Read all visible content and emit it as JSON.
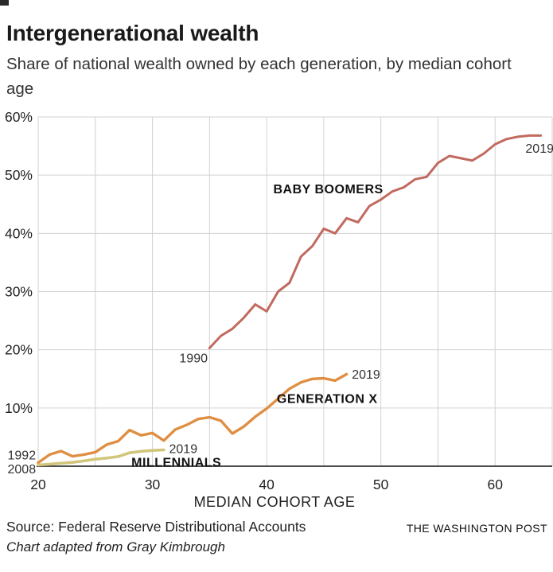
{
  "header": {
    "title": "Intergenerational wealth",
    "subtitle": "Share of national wealth owned by each generation, by median cohort age"
  },
  "footer": {
    "source": "Source: Federal Reserve Distributional Accounts",
    "credit": "Chart adapted from Gray Kimbrough",
    "publisher": "THE WASHINGTON POST"
  },
  "chart_data": {
    "type": "line",
    "title": "Intergenerational wealth",
    "subtitle": "Share of national wealth owned by each generation, by median cohort age",
    "xlabel": "MEDIAN COHORT AGE",
    "ylabel": "",
    "xlim": [
      20,
      65
    ],
    "ylim": [
      0,
      60
    ],
    "x_ticks": [
      20,
      30,
      40,
      50,
      60
    ],
    "y_ticks": [
      10,
      20,
      30,
      40,
      50,
      60
    ],
    "y_tick_suffix": "%",
    "grid": true,
    "grid_x_step": 5,
    "colors": {
      "grid": "#d2d2d2",
      "axis": "#4f4f4f",
      "tick_text": "#222222",
      "annotation_year_text": "#333333",
      "annotation_label_text": "#121212"
    },
    "series": [
      {
        "name": "Baby Boomers",
        "color": "#c16a5f",
        "stroke_width": 3,
        "points": [
          [
            35,
            20.3
          ],
          [
            36,
            22.4
          ],
          [
            37,
            23.6
          ],
          [
            38,
            25.5
          ],
          [
            39,
            27.8
          ],
          [
            40,
            26.6
          ],
          [
            41,
            30.0
          ],
          [
            42,
            31.5
          ],
          [
            43,
            36.0
          ],
          [
            44,
            37.8
          ],
          [
            45,
            40.8
          ],
          [
            46,
            40.0
          ],
          [
            47,
            42.6
          ],
          [
            48,
            41.9
          ],
          [
            49,
            44.7
          ],
          [
            50,
            45.8
          ],
          [
            51,
            47.2
          ],
          [
            52,
            47.9
          ],
          [
            53,
            49.3
          ],
          [
            54,
            49.7
          ],
          [
            55,
            52.1
          ],
          [
            56,
            53.3
          ],
          [
            57,
            52.9
          ],
          [
            58,
            52.5
          ],
          [
            59,
            53.7
          ],
          [
            60,
            55.3
          ],
          [
            61,
            56.2
          ],
          [
            62,
            56.6
          ],
          [
            63,
            56.8
          ],
          [
            64,
            56.8
          ]
        ]
      },
      {
        "name": "Generation X",
        "color": "#df8f44",
        "stroke_width": 3.4,
        "points": [
          [
            20,
            0.6
          ],
          [
            21,
            2.0
          ],
          [
            22,
            2.6
          ],
          [
            23,
            1.7
          ],
          [
            24,
            2.0
          ],
          [
            25,
            2.4
          ],
          [
            26,
            3.7
          ],
          [
            27,
            4.3
          ],
          [
            28,
            6.2
          ],
          [
            29,
            5.3
          ],
          [
            30,
            5.7
          ],
          [
            31,
            4.4
          ],
          [
            32,
            6.3
          ],
          [
            33,
            7.1
          ],
          [
            34,
            8.1
          ],
          [
            35,
            8.4
          ],
          [
            36,
            7.8
          ],
          [
            37,
            5.6
          ],
          [
            38,
            6.8
          ],
          [
            39,
            8.5
          ],
          [
            40,
            9.9
          ],
          [
            41,
            11.6
          ],
          [
            42,
            13.3
          ],
          [
            43,
            14.4
          ],
          [
            44,
            15.0
          ],
          [
            45,
            15.1
          ],
          [
            46,
            14.7
          ],
          [
            47,
            15.8
          ]
        ]
      },
      {
        "name": "Millennials",
        "color": "#d2c57c",
        "stroke_width": 3.6,
        "points": [
          [
            20,
            0.2
          ],
          [
            21,
            0.35
          ],
          [
            22,
            0.5
          ],
          [
            23,
            0.65
          ],
          [
            24,
            0.9
          ],
          [
            25,
            1.2
          ],
          [
            26,
            1.4
          ],
          [
            27,
            1.65
          ],
          [
            28,
            2.3
          ],
          [
            29,
            2.55
          ],
          [
            30,
            2.7
          ],
          [
            31,
            2.8
          ]
        ]
      }
    ],
    "annotations": [
      {
        "text": "1990",
        "age": 33.6,
        "pct": 18.6,
        "anchor": "middle",
        "bold": false
      },
      {
        "text": "2019",
        "age": 63.9,
        "pct": 54.6,
        "anchor": "middle",
        "bold": false
      },
      {
        "text": "2019",
        "age": 48.7,
        "pct": 15.8,
        "anchor": "middle",
        "bold": false
      },
      {
        "text": "2019",
        "age": 32.7,
        "pct": 3.0,
        "anchor": "middle",
        "bold": false
      },
      {
        "text": "1992",
        "age": 19.8,
        "pct": 1.9,
        "anchor": "end",
        "bold": false
      },
      {
        "text": "2008",
        "age": 19.8,
        "pct": -0.45,
        "anchor": "end",
        "bold": false
      },
      {
        "text": "BABY BOOMERS",
        "age": 45.4,
        "pct": 47.6,
        "anchor": "middle",
        "bold": true
      },
      {
        "text": "GENERATION X",
        "age": 45.3,
        "pct": 11.6,
        "anchor": "middle",
        "bold": true
      },
      {
        "text": "MILLENNIALS",
        "age": 32.1,
        "pct": 0.65,
        "anchor": "middle",
        "bold": true
      }
    ]
  }
}
